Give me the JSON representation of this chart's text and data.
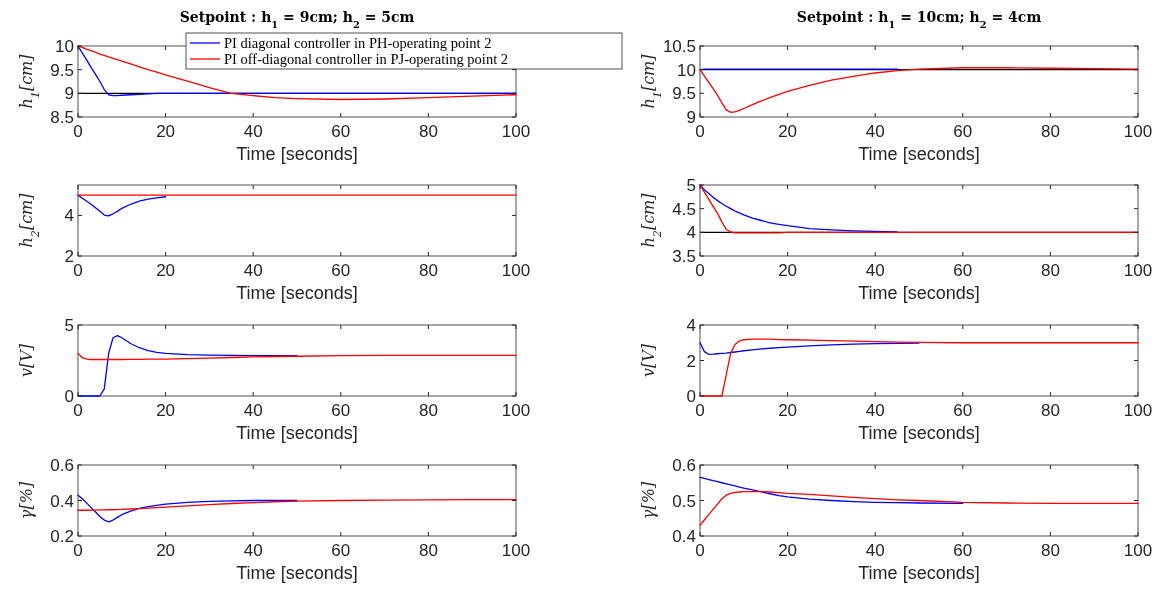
{
  "chart_data": [
    {
      "type": "line",
      "title": "Setpoint : h$_{1}$ = 9cm; h$_{2}$ = 5cm",
      "ylabel": "h$_{1}$[cm]",
      "xlabel": "Time [seconds]",
      "legend": "top right",
      "xlim": [
        0,
        100
      ],
      "xticks": [
        0,
        20,
        40,
        60,
        80,
        100
      ],
      "ylim": [
        8.5,
        10
      ],
      "yticks": [
        8.5,
        9,
        9.5,
        10
      ],
      "x": [
        0,
        1,
        2,
        3,
        4,
        5,
        6,
        7,
        8,
        9,
        10,
        12,
        14,
        16,
        18,
        20,
        25,
        30,
        35,
        40,
        45,
        50,
        60,
        70,
        80,
        90,
        100
      ],
      "ref_lines": [
        {
          "axis": "y",
          "value": 9,
          "color": "#000000"
        }
      ],
      "series": [
        {
          "name": "PI diagonal controller in PH-operating point 2",
          "color": "#0000ff",
          "values": [
            10,
            9.85,
            9.7,
            9.55,
            9.4,
            9.25,
            9.08,
            8.97,
            8.95,
            8.95,
            8.96,
            8.97,
            8.98,
            8.99,
            9,
            9,
            9,
            9,
            9,
            9,
            9,
            9,
            9,
            9,
            9,
            9,
            9
          ]
        },
        {
          "name": "PI off-diagonal controller in PJ-operating point 2",
          "color": "#ff0000",
          "values": [
            10,
            9.97,
            9.93,
            9.9,
            9.87,
            9.83,
            9.8,
            9.77,
            9.74,
            9.71,
            9.68,
            9.62,
            9.56,
            9.5,
            9.45,
            9.39,
            9.26,
            9.12,
            9,
            8.95,
            8.91,
            8.89,
            8.87,
            8.88,
            8.91,
            8.94,
            8.97
          ]
        }
      ]
    },
    {
      "type": "line",
      "title": "Setpoint : h$_{1}$ = 10cm; h$_{2}$ = 4cm",
      "ylabel": "h$_{1}$[cm]",
      "xlabel": "Time [seconds]",
      "xlim": [
        0,
        100
      ],
      "xticks": [
        0,
        20,
        40,
        60,
        80,
        100
      ],
      "ylim": [
        9,
        10.5
      ],
      "yticks": [
        9,
        9.5,
        10,
        10.5
      ],
      "x": [
        0,
        1,
        2,
        3,
        4,
        5,
        6,
        7,
        8,
        9,
        10,
        12,
        14,
        16,
        18,
        20,
        25,
        30,
        35,
        40,
        45,
        50,
        60,
        70,
        80,
        90,
        100
      ],
      "ref_lines": [
        {
          "axis": "y",
          "value": 10,
          "color": "#000000"
        }
      ],
      "series": [
        {
          "color": "#0000ff",
          "values": [
            10,
            10.01,
            10.01,
            10.01,
            10.01,
            10.01,
            10.01,
            10.01,
            10.01,
            10.01,
            10.01,
            10.01,
            10.01,
            10.01,
            10.01,
            10.01,
            10.01,
            10.01,
            10.01,
            10.01,
            10.01,
            null,
            null,
            null,
            null,
            null,
            null
          ]
        },
        {
          "color": "#ff0000",
          "values": [
            10,
            9.87,
            9.73,
            9.6,
            9.46,
            9.3,
            9.15,
            9.1,
            9.11,
            9.14,
            9.18,
            9.26,
            9.34,
            9.41,
            9.48,
            9.54,
            9.67,
            9.78,
            9.86,
            9.93,
            9.98,
            10.01,
            10.04,
            10.04,
            10.03,
            10.02,
            10.01
          ]
        }
      ]
    },
    {
      "type": "line",
      "ylabel": "h$_{2}$[cm]",
      "xlabel": "Time [seconds]",
      "xlim": [
        0,
        100
      ],
      "xticks": [
        0,
        20,
        40,
        60,
        80,
        100
      ],
      "ylim": [
        2,
        5.5
      ],
      "yticks": [
        2,
        4
      ],
      "x": [
        0,
        1,
        2,
        3,
        4,
        5,
        6,
        7,
        8,
        9,
        10,
        12,
        14,
        16,
        18,
        20,
        25,
        30,
        35,
        40,
        45,
        50,
        60,
        70,
        80,
        90,
        100
      ],
      "series": [
        {
          "color": "#0000ff",
          "values": [
            5,
            4.85,
            4.7,
            4.55,
            4.38,
            4.2,
            4.02,
            3.98,
            4.08,
            4.2,
            4.35,
            4.55,
            4.7,
            4.8,
            4.87,
            4.92,
            null,
            null,
            null,
            null,
            null,
            null,
            null,
            null,
            null,
            null,
            null
          ]
        },
        {
          "color": "#ff0000",
          "values": [
            5,
            5,
            5,
            5,
            5,
            5,
            5,
            5,
            5,
            5,
            5,
            5,
            5,
            5,
            5,
            5,
            5,
            5,
            5,
            5,
            5,
            5,
            5,
            5,
            5,
            5,
            5
          ]
        }
      ]
    },
    {
      "type": "line",
      "ylabel": "h$_{2}$[cm]",
      "xlabel": "Time [seconds]",
      "xlim": [
        0,
        100
      ],
      "xticks": [
        0,
        20,
        40,
        60,
        80,
        100
      ],
      "ylim": [
        3.5,
        5
      ],
      "yticks": [
        3.5,
        4,
        4.5,
        5
      ],
      "x": [
        0,
        1,
        2,
        3,
        4,
        5,
        6,
        7,
        8,
        9,
        10,
        12,
        14,
        16,
        18,
        20,
        25,
        30,
        35,
        40,
        45,
        50,
        60,
        70,
        80,
        90,
        100
      ],
      "ref_lines": [
        {
          "axis": "y",
          "value": 4,
          "color": "#000000"
        }
      ],
      "series": [
        {
          "color": "#0000ff",
          "values": [
            5,
            4.9,
            4.82,
            4.74,
            4.67,
            4.61,
            4.55,
            4.5,
            4.45,
            4.41,
            4.37,
            4.3,
            4.25,
            4.2,
            4.17,
            4.14,
            4.08,
            4.05,
            4.03,
            4.02,
            4.01,
            null,
            null,
            null,
            null,
            null,
            null
          ]
        },
        {
          "color": "#ff0000",
          "values": [
            5,
            4.85,
            4.7,
            4.55,
            4.4,
            4.22,
            4.06,
            4.01,
            3.99,
            3.99,
            3.99,
            3.99,
            3.99,
            3.99,
            3.99,
            4,
            4,
            4,
            4,
            4,
            4,
            4,
            4,
            4,
            4,
            4,
            4
          ]
        }
      ]
    },
    {
      "type": "line",
      "ylabel": "v[V]",
      "xlabel": "Time [seconds]",
      "xlim": [
        0,
        100
      ],
      "xticks": [
        0,
        20,
        40,
        60,
        80,
        100
      ],
      "ylim": [
        0,
        5
      ],
      "yticks": [
        0,
        5
      ],
      "x": [
        0,
        1,
        2,
        3,
        4,
        5,
        6,
        7,
        8,
        9,
        10,
        12,
        14,
        16,
        18,
        20,
        25,
        30,
        35,
        40,
        45,
        50,
        60,
        70,
        80,
        90,
        100
      ],
      "series": [
        {
          "color": "#0000ff",
          "values": [
            0,
            0,
            0,
            0,
            0,
            0,
            0.5,
            3,
            4.1,
            4.25,
            4.1,
            3.7,
            3.4,
            3.2,
            3.07,
            3,
            2.92,
            2.88,
            2.86,
            2.85,
            2.85,
            2.85,
            null,
            null,
            null,
            null,
            null
          ]
        },
        {
          "color": "#ff0000",
          "values": [
            3,
            2.7,
            2.6,
            2.57,
            2.57,
            2.57,
            2.57,
            2.57,
            2.57,
            2.57,
            2.57,
            2.58,
            2.58,
            2.59,
            2.59,
            2.6,
            2.63,
            2.67,
            2.71,
            2.75,
            2.78,
            2.8,
            2.84,
            2.86,
            2.86,
            2.86,
            2.86
          ]
        }
      ]
    },
    {
      "type": "line",
      "ylabel": "v[V]",
      "xlabel": "Time [seconds]",
      "xlim": [
        0,
        100
      ],
      "xticks": [
        0,
        20,
        40,
        60,
        80,
        100
      ],
      "ylim": [
        0,
        4
      ],
      "yticks": [
        0,
        2,
        4
      ],
      "x": [
        0,
        1,
        2,
        3,
        4,
        5,
        6,
        7,
        8,
        9,
        10,
        12,
        14,
        16,
        18,
        20,
        25,
        30,
        35,
        40,
        45,
        50,
        60,
        70,
        80,
        90,
        100
      ],
      "series": [
        {
          "color": "#0000ff",
          "values": [
            3,
            2.5,
            2.35,
            2.36,
            2.38,
            2.4,
            2.42,
            2.45,
            2.48,
            2.51,
            2.55,
            2.6,
            2.65,
            2.69,
            2.72,
            2.75,
            2.82,
            2.88,
            2.92,
            2.95,
            2.97,
            2.98,
            null,
            null,
            null,
            null,
            null
          ]
        },
        {
          "color": "#ff0000",
          "values": [
            0,
            0,
            0,
            0,
            0,
            0,
            1.2,
            2.4,
            2.9,
            3.1,
            3.17,
            3.2,
            3.2,
            3.2,
            3.18,
            3.17,
            3.15,
            3.12,
            3.09,
            3.06,
            3.04,
            3.02,
            3,
            3,
            3,
            3,
            3
          ]
        }
      ]
    },
    {
      "type": "line",
      "ylabel": "γ[%]",
      "xlabel": "Time [seconds]",
      "xlim": [
        0,
        100
      ],
      "xticks": [
        0,
        20,
        40,
        60,
        80,
        100
      ],
      "ylim": [
        0.2,
        0.6
      ],
      "yticks": [
        0.2,
        0.4,
        0.6
      ],
      "x": [
        0,
        1,
        2,
        3,
        4,
        5,
        6,
        7,
        8,
        9,
        10,
        12,
        14,
        16,
        18,
        20,
        25,
        30,
        35,
        40,
        45,
        50,
        60,
        70,
        80,
        90,
        100
      ],
      "series": [
        {
          "color": "#0000ff",
          "values": [
            0.43,
            0.41,
            0.385,
            0.36,
            0.335,
            0.31,
            0.29,
            0.28,
            0.29,
            0.305,
            0.32,
            0.34,
            0.355,
            0.365,
            0.373,
            0.38,
            0.39,
            0.395,
            0.398,
            0.4,
            0.4,
            0.4,
            null,
            null,
            null,
            null,
            null
          ]
        },
        {
          "color": "#ff0000",
          "values": [
            0.345,
            0.345,
            0.345,
            0.346,
            0.346,
            0.347,
            0.347,
            0.348,
            0.348,
            0.349,
            0.35,
            0.352,
            0.354,
            0.357,
            0.36,
            0.363,
            0.37,
            0.377,
            0.383,
            0.388,
            0.393,
            0.396,
            0.4,
            0.402,
            0.404,
            0.405,
            0.405
          ]
        }
      ]
    },
    {
      "type": "line",
      "ylabel": "γ[%]",
      "xlabel": "Time [seconds]",
      "xlim": [
        0,
        100
      ],
      "xticks": [
        0,
        20,
        40,
        60,
        80,
        100
      ],
      "ylim": [
        0.4,
        0.6
      ],
      "yticks": [
        0.4,
        0.5,
        0.6
      ],
      "x": [
        0,
        1,
        2,
        3,
        4,
        5,
        6,
        7,
        8,
        9,
        10,
        12,
        14,
        16,
        18,
        20,
        25,
        30,
        35,
        40,
        45,
        50,
        60,
        70,
        80,
        90,
        100
      ],
      "series": [
        {
          "color": "#0000ff",
          "values": [
            0.565,
            0.562,
            0.559,
            0.556,
            0.553,
            0.55,
            0.547,
            0.544,
            0.541,
            0.538,
            0.535,
            0.53,
            0.524,
            0.519,
            0.514,
            0.51,
            0.504,
            0.5,
            0.497,
            0.495,
            0.494,
            0.493,
            0.492,
            null,
            null,
            null,
            null
          ]
        },
        {
          "color": "#ff0000",
          "values": [
            0.43,
            0.445,
            0.46,
            0.475,
            0.49,
            0.505,
            0.515,
            0.52,
            0.523,
            0.524,
            0.525,
            0.525,
            0.525,
            0.524,
            0.522,
            0.52,
            0.517,
            0.513,
            0.509,
            0.505,
            0.502,
            0.5,
            0.495,
            0.493,
            0.492,
            0.492,
            0.492
          ]
        }
      ]
    }
  ]
}
